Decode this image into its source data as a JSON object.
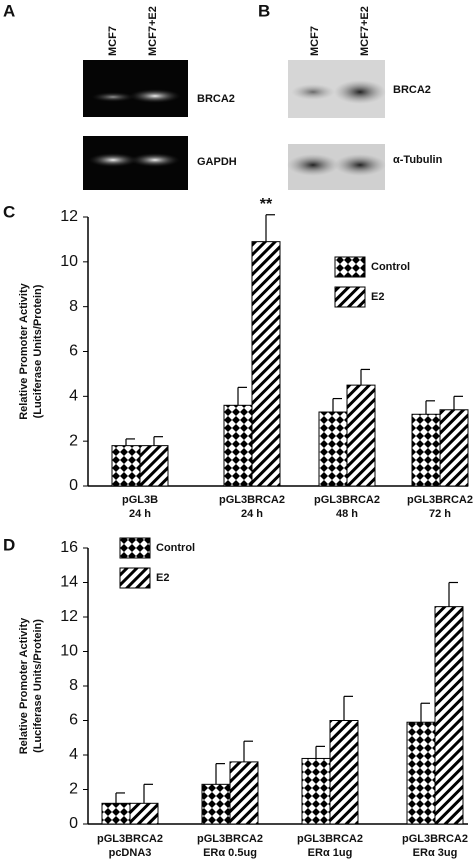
{
  "blots": {
    "A": {
      "letter": "A",
      "lanes": [
        "MCF7",
        "MCF7+E2"
      ],
      "rows": [
        "BRCA2",
        "GAPDH"
      ]
    },
    "B": {
      "letter": "B",
      "lanes": [
        "MCF7",
        "MCF7+E2"
      ],
      "rows": [
        "BRCA2",
        "α-Tubulin"
      ]
    }
  },
  "chart_data": [
    {
      "type": "bar",
      "panel": "C",
      "y_label": [
        "Relative Promoter Activity",
        "(Luciferase Units/Protein)"
      ],
      "categories": [
        [
          "pGL3B",
          "24 h"
        ],
        [
          "pGL3BRCA2",
          "24 h"
        ],
        [
          "pGL3BRCA2",
          "48 h"
        ],
        [
          "pGL3BRCA2",
          "72 h"
        ]
      ],
      "series": [
        {
          "name": "Control",
          "color": "#000000",
          "pattern": "diamond",
          "values": [
            1.8,
            3.6,
            3.3,
            3.2
          ],
          "errors": [
            0.3,
            0.8,
            0.6,
            0.6
          ]
        },
        {
          "name": "E2",
          "color": "#000000",
          "pattern": "hatch",
          "values": [
            1.8,
            10.9,
            4.5,
            3.4
          ],
          "errors": [
            0.4,
            1.2,
            0.7,
            0.6
          ]
        }
      ],
      "annotations": [
        {
          "text": "**",
          "series": 1,
          "index": 1
        }
      ],
      "ylim": [
        0,
        12
      ],
      "yticks": [
        0,
        2,
        4,
        6,
        8,
        10,
        12
      ],
      "grid": false
    },
    {
      "type": "bar",
      "panel": "D",
      "y_label": [
        "Relative Promoter Activity",
        "(Luciferase Units/Protein)"
      ],
      "categories": [
        [
          "pGL3BRCA2",
          "pcDNA3"
        ],
        [
          "pGL3BRCA2",
          "ERα 0.5ug"
        ],
        [
          "pGL3BRCA2",
          "ERα 1ug"
        ],
        [
          "pGL3BRCA2",
          "ERα 3ug"
        ]
      ],
      "series": [
        {
          "name": "Control",
          "color": "#000000",
          "pattern": "diamond",
          "values": [
            1.2,
            2.3,
            3.8,
            5.9
          ],
          "errors": [
            0.6,
            1.2,
            0.7,
            1.1
          ]
        },
        {
          "name": "E2",
          "color": "#000000",
          "pattern": "hatch",
          "values": [
            1.2,
            3.6,
            6.0,
            12.6
          ],
          "errors": [
            1.1,
            1.2,
            1.4,
            1.4
          ]
        }
      ],
      "annotations": [],
      "ylim": [
        0,
        16
      ],
      "yticks": [
        0,
        2,
        4,
        6,
        8,
        10,
        12,
        14,
        16
      ],
      "grid": false
    }
  ]
}
